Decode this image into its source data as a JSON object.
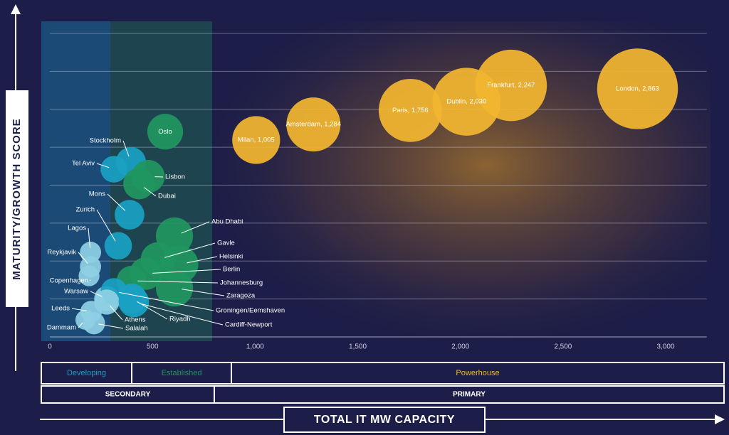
{
  "chart_data": {
    "type": "bubble",
    "ylabel": "MATURITY/GROWTH SCORE",
    "xlabel": "TOTAL IT MW CAPACITY",
    "xlim": [
      -40,
      3200
    ],
    "ylim": [
      0,
      8.3
    ],
    "xticks": [
      0,
      500,
      {
        "value": 1000,
        "label": "1,000"
      },
      {
        "value": 1500,
        "label": "1,500"
      },
      {
        "value": 2000,
        "label": "2,000"
      },
      {
        "value": 2500,
        "label": "2,500"
      },
      {
        "value": 3000,
        "label": "3,000"
      }
    ],
    "grid": true,
    "points": [
      {
        "label": "London, 2,863",
        "x": 2863,
        "y": 6.54,
        "color": "#f2b630"
      },
      {
        "label": "Frankfurt, 2,247",
        "x": 2247,
        "y": 6.63,
        "color": "#f2b630"
      },
      {
        "label": "Dublin, 2,030",
        "x": 2030,
        "y": 6.2,
        "color": "#f2b630"
      },
      {
        "label": "Paris, 1,756",
        "x": 1756,
        "y": 5.97,
        "color": "#f2b630"
      },
      {
        "label": "Amsterdam, 1,284",
        "x": 1284,
        "y": 5.6,
        "color": "#f2b630"
      },
      {
        "label": "Milan, 1,005",
        "x": 1005,
        "y": 5.19,
        "color": "#f2b630"
      },
      {
        "label": "Oslo",
        "x": 562,
        "y": 5.41,
        "color": "#1f9660"
      },
      {
        "label": "Stockholm",
        "x": 395,
        "y": 4.61,
        "color": "#1aa0c4"
      },
      {
        "label": "Tel Aviv",
        "x": 312,
        "y": 4.42,
        "color": "#1aa0c4"
      },
      {
        "label": "Lisbon",
        "x": 479,
        "y": 4.23,
        "color": "#1f9660"
      },
      {
        "label": "Dubai",
        "x": 434,
        "y": 4.04,
        "color": "#1f9660"
      },
      {
        "label": "Mons",
        "x": 388,
        "y": 3.22,
        "color": "#1aa0c4"
      },
      {
        "label": "Zurich",
        "x": 333,
        "y": 2.4,
        "color": "#1aa0c4"
      },
      {
        "label": "Abu Dhabi",
        "x": 607,
        "y": 2.66,
        "color": "#1f9660"
      },
      {
        "label": "Lagos",
        "x": 198,
        "y": 2.23,
        "color": "#8fd0e4"
      },
      {
        "label": "Reykjavik",
        "x": 198,
        "y": 1.85,
        "color": "#8fd0e4"
      },
      {
        "label": "Gavle",
        "x": 527,
        "y": 2.04,
        "color": "#1f9660"
      },
      {
        "label": "Helsinki",
        "x": 631,
        "y": 1.91,
        "color": "#1f9660"
      },
      {
        "label": "Berlin",
        "x": 468,
        "y": 1.67,
        "color": "#1f9660"
      },
      {
        "label": "Copenhagen",
        "x": 191,
        "y": 1.61,
        "color": "#8fd0e4"
      },
      {
        "label": "Johannesburg",
        "x": 399,
        "y": 1.48,
        "color": "#1f9660"
      },
      {
        "label": "Zaragoza",
        "x": 607,
        "y": 1.29,
        "color": "#1f9660"
      },
      {
        "label": "Warsaw",
        "x": 277,
        "y": 1.01,
        "color": "#8fd0e4"
      },
      {
        "label": "Groningen/Eemshaven",
        "x": 312,
        "y": 1.2,
        "color": "#1aa0c4"
      },
      {
        "label": "Riyadh",
        "x": 399,
        "y": 1.01,
        "color": "#1aa0c4"
      },
      {
        "label": "Leeds",
        "x": 201,
        "y": 0.67,
        "color": "#8fd0e4"
      },
      {
        "label": "Athens",
        "x": 277,
        "y": 0.92,
        "color": "#8fd0e4"
      },
      {
        "label": "Cardiff-Newport",
        "x": 409,
        "y": 0.92,
        "color": "#1aa0c4"
      },
      {
        "label": "Dammam",
        "x": 173,
        "y": 0.45,
        "color": "#8fd0e4"
      },
      {
        "label": "Salalah",
        "x": 215,
        "y": 0.36,
        "color": "#8fd0e4"
      }
    ]
  },
  "bands": {
    "maturity": [
      {
        "label": "Developing",
        "color": "#1aa0c4"
      },
      {
        "label": "Established",
        "color": "#1f9660"
      },
      {
        "label": "Powerhouse",
        "color": "#f2b630"
      }
    ],
    "market": [
      "SECONDARY",
      "PRIMARY"
    ]
  }
}
